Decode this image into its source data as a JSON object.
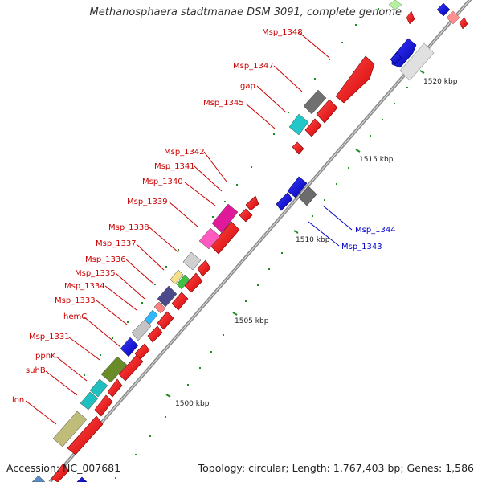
{
  "title": "Methanosphaera stadtmanae DSM 3091, complete genome",
  "footer": {
    "accession": "Accession: NC_007681",
    "topology": "Topology: circular; Length: 1,767,403 bp; Genes: 1,586"
  },
  "colors": {
    "forward_label": "#cc0000",
    "reverse_label": "#0000cc",
    "tick": "#228b22",
    "backbone": "#888888"
  },
  "scale_labels": [
    {
      "name": "kbp-1500",
      "text": "1500 kbp"
    },
    {
      "name": "kbp-1505",
      "text": "1505 kbp"
    },
    {
      "name": "kbp-1510",
      "text": "1510 kbp"
    },
    {
      "name": "kbp-1515",
      "text": "1515 kbp"
    },
    {
      "name": "kbp-1520",
      "text": "1520 kbp"
    }
  ],
  "gene_labels": [
    {
      "text": "Msp_1348",
      "strand": "forward"
    },
    {
      "text": "Msp_1347",
      "strand": "forward"
    },
    {
      "text": "gap",
      "strand": "forward"
    },
    {
      "text": "Msp_1345",
      "strand": "forward"
    },
    {
      "text": "Msp_1342",
      "strand": "forward"
    },
    {
      "text": "Msp_1341",
      "strand": "forward"
    },
    {
      "text": "Msp_1340",
      "strand": "forward"
    },
    {
      "text": "Msp_1339",
      "strand": "forward"
    },
    {
      "text": "Msp_1338",
      "strand": "forward"
    },
    {
      "text": "Msp_1337",
      "strand": "forward"
    },
    {
      "text": "Msp_1336",
      "strand": "forward"
    },
    {
      "text": "Msp_1335",
      "strand": "forward"
    },
    {
      "text": "Msp_1334",
      "strand": "forward"
    },
    {
      "text": "Msp_1333",
      "strand": "forward"
    },
    {
      "text": "hemC",
      "strand": "forward"
    },
    {
      "text": "Msp_1331",
      "strand": "forward"
    },
    {
      "text": "ppnK",
      "strand": "forward"
    },
    {
      "text": "suhB",
      "strand": "forward"
    },
    {
      "text": "lon",
      "strand": "forward"
    },
    {
      "text": "Msp_1344",
      "strand": "reverse"
    },
    {
      "text": "Msp_1343",
      "strand": "reverse"
    }
  ]
}
